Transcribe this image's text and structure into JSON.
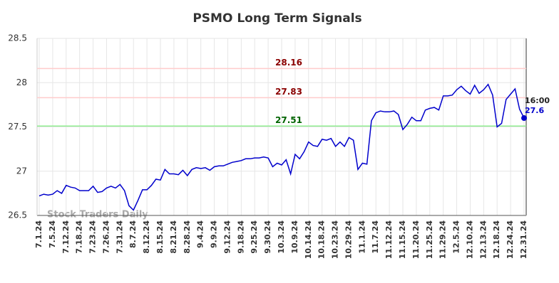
{
  "chart_data": {
    "type": "line",
    "title": "PSMO Long Term Signals",
    "watermark": "Stock Traders Daily",
    "x": [
      "7.1.24",
      "7.2.24",
      "7.3.24",
      "7.5.24",
      "7.8.24",
      "7.10.24",
      "7.12.24",
      "7.15.24",
      "7.16.24",
      "7.18.24",
      "7.19.24",
      "7.22.24",
      "7.23.24",
      "7.24.24",
      "7.25.24",
      "7.26.24",
      "7.29.24",
      "7.30.24",
      "7.31.24",
      "8.1.24",
      "8.5.24",
      "8.7.24",
      "8.8.24",
      "8.9.24",
      "8.12.24",
      "8.13.24",
      "8.14.24",
      "8.15.24",
      "8.16.24",
      "8.19.24",
      "8.21.24",
      "8.23.24",
      "8.26.24",
      "8.28.24",
      "8.30.24",
      "9.3.24",
      "9.4.24",
      "9.5.24",
      "9.6.24",
      "9.9.24",
      "9.10.24",
      "9.11.24",
      "9.12.24",
      "9.16.24",
      "9.17.24",
      "9.18.24",
      "9.20.24",
      "9.23.24",
      "9.25.24",
      "9.26.24",
      "9.27.24",
      "9.30.24",
      "10.1.24",
      "10.2.24",
      "10.3.24",
      "10.7.24",
      "10.8.24",
      "10.9.24",
      "10.10.24",
      "10.11.24",
      "10.14.24",
      "10.15.24",
      "10.17.24",
      "10.18.24",
      "10.21.24",
      "10.22.24",
      "10.23.24",
      "10.25.24",
      "10.28.24",
      "10.29.24",
      "10.30.24",
      "10.31.24",
      "11.1.24",
      "11.4.24",
      "11.6.24",
      "11.7.24",
      "11.8.24",
      "11.11.24",
      "11.12.24",
      "11.13.24",
      "11.14.24",
      "11.15.24",
      "11.18.24",
      "11.19.24",
      "11.20.24",
      "11.21.24",
      "11.22.24",
      "11.25.24",
      "11.26.24",
      "11.27.24",
      "11.29.24",
      "12.2.24",
      "12.4.24",
      "12.5.24",
      "12.6.24",
      "12.9.24",
      "12.10.24",
      "12.11.24",
      "12.12.24",
      "12.13.24",
      "12.16.24",
      "12.17.24",
      "12.18.24",
      "12.19.24",
      "12.23.24",
      "12.24.24",
      "12.27.24",
      "12.30.24",
      "12.31.24"
    ],
    "values": [
      26.72,
      26.74,
      26.73,
      26.74,
      26.78,
      26.75,
      26.84,
      26.82,
      26.81,
      26.78,
      26.78,
      26.78,
      26.83,
      26.76,
      26.77,
      26.81,
      26.83,
      26.81,
      26.85,
      26.78,
      26.61,
      26.56,
      26.67,
      26.79,
      26.79,
      26.84,
      26.91,
      26.9,
      27.02,
      26.97,
      26.97,
      26.96,
      27.01,
      26.95,
      27.02,
      27.04,
      27.03,
      27.04,
      27.01,
      27.05,
      27.06,
      27.06,
      27.08,
      27.1,
      27.11,
      27.12,
      27.14,
      27.14,
      27.15,
      27.15,
      27.16,
      27.15,
      27.05,
      27.09,
      27.07,
      27.13,
      26.97,
      27.19,
      27.14,
      27.22,
      27.33,
      27.29,
      27.28,
      27.36,
      27.35,
      27.37,
      27.28,
      27.33,
      27.28,
      27.38,
      27.35,
      27.02,
      27.09,
      27.08,
      27.57,
      27.66,
      27.68,
      27.67,
      27.67,
      27.68,
      27.64,
      27.47,
      27.53,
      27.61,
      27.57,
      27.57,
      27.69,
      27.71,
      27.72,
      27.69,
      27.85,
      27.85,
      27.86,
      27.92,
      27.96,
      27.91,
      27.87,
      27.97,
      27.88,
      27.92,
      27.98,
      27.86,
      27.5,
      27.54,
      27.81,
      27.87,
      27.93,
      27.7,
      27.6
    ],
    "color": "#0000cc",
    "xticks": [
      "7.1.24",
      "7.5.24",
      "7.12.24",
      "7.18.24",
      "7.23.24",
      "7.26.24",
      "7.31.24",
      "8.7.24",
      "8.12.24",
      "8.15.24",
      "8.21.24",
      "8.28.24",
      "9.4.24",
      "9.9.24",
      "9.12.24",
      "9.18.24",
      "9.25.24",
      "9.30.24",
      "10.3.24",
      "10.9.24",
      "10.14.24",
      "10.18.24",
      "10.23.24",
      "10.29.24",
      "11.1.24",
      "11.7.24",
      "11.12.24",
      "11.15.24",
      "11.20.24",
      "11.25.24",
      "11.29.24",
      "12.5.24",
      "12.10.24",
      "12.13.24",
      "12.18.24",
      "12.24.24",
      "12.31.24"
    ],
    "ylim": [
      26.5,
      28.5
    ],
    "yticks": [
      26.5,
      27,
      27.5,
      28,
      28.5
    ],
    "grid": true,
    "hlines": [
      {
        "value": 28.16,
        "color": "#ffcccc",
        "label_color": "#8b0000"
      },
      {
        "value": 27.83,
        "color": "#ffcccc",
        "label_color": "#8b0000"
      },
      {
        "value": 27.51,
        "color": "#90ee90",
        "label_color": "#006400"
      }
    ],
    "last_label": "16:00"
  }
}
